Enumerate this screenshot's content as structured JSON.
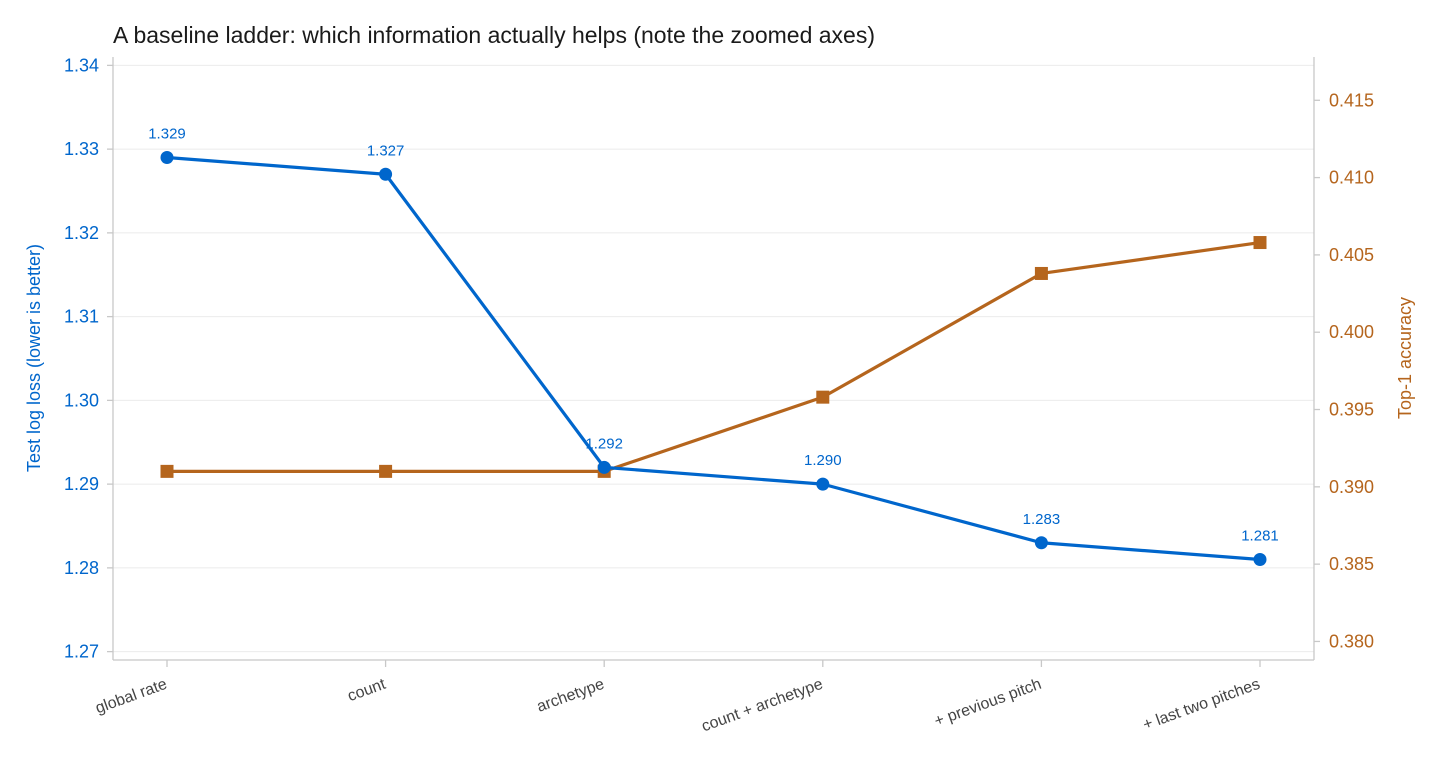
{
  "chart_data": {
    "type": "line",
    "title": "A baseline ladder: which information actually helps (note the zoomed axes)",
    "categories": [
      "global rate",
      "count",
      "archetype",
      "count + archetype",
      "+ previous pitch",
      "+ last two pitches"
    ],
    "series": [
      {
        "name": "",
        "axis": "left",
        "values": [
          1.329,
          1.327,
          1.292,
          1.29,
          1.283,
          1.281
        ],
        "data_labels": [
          "1.329",
          "1.327",
          "1.292",
          "1.290",
          "1.283",
          "1.281"
        ],
        "color": "#0066cc",
        "marker": "circle"
      },
      {
        "name": "",
        "axis": "right",
        "values": [
          0.391,
          0.391,
          0.391,
          0.3958,
          0.4038,
          0.4058
        ],
        "color": "#b5651d",
        "marker": "square"
      }
    ],
    "ylabel_left": "Test log loss (lower is better)",
    "ylabel_right": "Top-1 accuracy",
    "ylim_left": [
      1.269,
      1.341
    ],
    "ylim_right": [
      0.3788,
      0.4178
    ],
    "yticks_left": [
      1.27,
      1.28,
      1.29,
      1.3,
      1.31,
      1.32,
      1.33,
      1.34
    ],
    "yticks_left_labels": [
      "1.27",
      "1.28",
      "1.29",
      "1.30",
      "1.31",
      "1.32",
      "1.33",
      "1.34"
    ],
    "yticks_right": [
      0.38,
      0.385,
      0.39,
      0.395,
      0.4,
      0.405,
      0.41,
      0.415
    ],
    "yticks_right_labels": [
      "0.380",
      "0.385",
      "0.390",
      "0.395",
      "0.400",
      "0.405",
      "0.410",
      "0.415"
    ],
    "grid": "horizontal",
    "legend": "none"
  },
  "colors": {
    "left_axis": "#0066cc",
    "right_axis": "#b5651d",
    "grid": "#ebebeb",
    "spine": "#c8c8c8"
  }
}
